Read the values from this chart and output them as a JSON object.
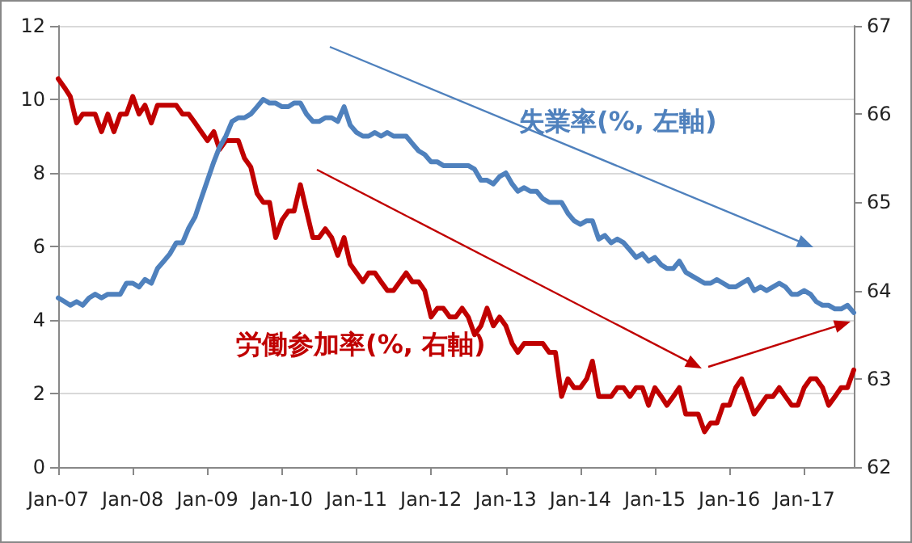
{
  "chart_data": {
    "type": "line",
    "x": [
      "2007-01",
      "2007-02",
      "2007-03",
      "2007-04",
      "2007-05",
      "2007-06",
      "2007-07",
      "2007-08",
      "2007-09",
      "2007-10",
      "2007-11",
      "2007-12",
      "2008-01",
      "2008-02",
      "2008-03",
      "2008-04",
      "2008-05",
      "2008-06",
      "2008-07",
      "2008-08",
      "2008-09",
      "2008-10",
      "2008-11",
      "2008-12",
      "2009-01",
      "2009-02",
      "2009-03",
      "2009-04",
      "2009-05",
      "2009-06",
      "2009-07",
      "2009-08",
      "2009-09",
      "2009-10",
      "2009-11",
      "2009-12",
      "2010-01",
      "2010-02",
      "2010-03",
      "2010-04",
      "2010-05",
      "2010-06",
      "2010-07",
      "2010-08",
      "2010-09",
      "2010-10",
      "2010-11",
      "2010-12",
      "2011-01",
      "2011-02",
      "2011-03",
      "2011-04",
      "2011-05",
      "2011-06",
      "2011-07",
      "2011-08",
      "2011-09",
      "2011-10",
      "2011-11",
      "2011-12",
      "2012-01",
      "2012-02",
      "2012-03",
      "2012-04",
      "2012-05",
      "2012-06",
      "2012-07",
      "2012-08",
      "2012-09",
      "2012-10",
      "2012-11",
      "2012-12",
      "2013-01",
      "2013-02",
      "2013-03",
      "2013-04",
      "2013-05",
      "2013-06",
      "2013-07",
      "2013-08",
      "2013-09",
      "2013-10",
      "2013-11",
      "2013-12",
      "2014-01",
      "2014-02",
      "2014-03",
      "2014-04",
      "2014-05",
      "2014-06",
      "2014-07",
      "2014-08",
      "2014-09",
      "2014-10",
      "2014-11",
      "2014-12",
      "2015-01",
      "2015-02",
      "2015-03",
      "2015-04",
      "2015-05",
      "2015-06",
      "2015-07",
      "2015-08",
      "2015-09",
      "2015-10",
      "2015-11",
      "2015-12",
      "2016-01",
      "2016-02",
      "2016-03",
      "2016-04",
      "2016-05",
      "2016-06",
      "2016-07",
      "2016-08",
      "2016-09",
      "2016-10",
      "2016-11",
      "2016-12",
      "2017-01",
      "2017-02",
      "2017-03",
      "2017-04",
      "2017-05",
      "2017-06",
      "2017-07",
      "2017-08",
      "2017-09"
    ],
    "series": [
      {
        "name": "失業率(%, 左軸)",
        "color": "#4f81bd",
        "values": [
          4.6,
          4.5,
          4.4,
          4.5,
          4.4,
          4.6,
          4.7,
          4.6,
          4.7,
          4.7,
          4.7,
          5.0,
          5.0,
          4.9,
          5.1,
          5.0,
          5.4,
          5.6,
          5.8,
          6.1,
          6.1,
          6.5,
          6.8,
          7.3,
          7.8,
          8.3,
          8.7,
          9.0,
          9.4,
          9.5,
          9.5,
          9.6,
          9.8,
          10.0,
          9.9,
          9.9,
          9.8,
          9.8,
          9.9,
          9.9,
          9.6,
          9.4,
          9.4,
          9.5,
          9.5,
          9.4,
          9.8,
          9.3,
          9.1,
          9.0,
          9.0,
          9.1,
          9.0,
          9.1,
          9.0,
          9.0,
          9.0,
          8.8,
          8.6,
          8.5,
          8.3,
          8.3,
          8.2,
          8.2,
          8.2,
          8.2,
          8.2,
          8.1,
          7.8,
          7.8,
          7.7,
          7.9,
          8.0,
          7.7,
          7.5,
          7.6,
          7.5,
          7.5,
          7.3,
          7.2,
          7.2,
          7.2,
          6.9,
          6.7,
          6.6,
          6.7,
          6.7,
          6.2,
          6.3,
          6.1,
          6.2,
          6.1,
          5.9,
          5.7,
          5.8,
          5.6,
          5.7,
          5.5,
          5.4,
          5.4,
          5.6,
          5.3,
          5.2,
          5.1,
          5.0,
          5.0,
          5.1,
          5.0,
          4.9,
          4.9,
          5.0,
          5.1,
          4.8,
          4.9,
          4.8,
          4.9,
          5.0,
          4.9,
          4.7,
          4.7,
          4.8,
          4.7,
          4.5,
          4.4,
          4.4,
          4.3,
          4.3,
          4.4,
          4.2
        ]
      },
      {
        "name": "労働参加率(%, 右軸)",
        "color": "#c00000",
        "axis": "y2",
        "values": [
          66.4,
          66.3,
          66.2,
          65.9,
          66.0,
          66.0,
          66.0,
          65.8,
          66.0,
          65.8,
          66.0,
          66.0,
          66.2,
          66.0,
          66.1,
          65.9,
          66.1,
          66.1,
          66.1,
          66.1,
          66.0,
          66.0,
          65.9,
          65.8,
          65.7,
          65.8,
          65.6,
          65.7,
          65.7,
          65.7,
          65.5,
          65.4,
          65.1,
          65.0,
          65.0,
          64.6,
          64.8,
          64.9,
          64.9,
          65.2,
          64.9,
          64.6,
          64.6,
          64.7,
          64.6,
          64.4,
          64.6,
          64.3,
          64.2,
          64.1,
          64.2,
          64.2,
          64.1,
          64.0,
          64.0,
          64.1,
          64.2,
          64.1,
          64.1,
          64.0,
          63.7,
          63.8,
          63.8,
          63.7,
          63.7,
          63.8,
          63.7,
          63.5,
          63.6,
          63.8,
          63.6,
          63.7,
          63.6,
          63.4,
          63.3,
          63.4,
          63.4,
          63.4,
          63.4,
          63.3,
          63.3,
          62.8,
          63.0,
          62.9,
          62.9,
          63.0,
          63.2,
          62.8,
          62.8,
          62.8,
          62.9,
          62.9,
          62.8,
          62.9,
          62.9,
          62.7,
          62.9,
          62.8,
          62.7,
          62.8,
          62.9,
          62.6,
          62.6,
          62.6,
          62.4,
          62.5,
          62.5,
          62.7,
          62.7,
          62.9,
          63.0,
          62.8,
          62.6,
          62.7,
          62.8,
          62.8,
          62.9,
          62.8,
          62.7,
          62.7,
          62.9,
          63.0,
          63.0,
          62.9,
          62.7,
          62.8,
          62.9,
          62.9,
          63.1
        ]
      }
    ],
    "xlim": [
      "2007-01",
      "2017-09"
    ],
    "xticks": [
      {
        "value": "2007-01",
        "label": "Jan-07"
      },
      {
        "value": "2008-01",
        "label": "Jan-08"
      },
      {
        "value": "2009-01",
        "label": "Jan-09"
      },
      {
        "value": "2010-01",
        "label": "Jan-10"
      },
      {
        "value": "2011-01",
        "label": "Jan-11"
      },
      {
        "value": "2012-01",
        "label": "Jan-12"
      },
      {
        "value": "2013-01",
        "label": "Jan-13"
      },
      {
        "value": "2014-01",
        "label": "Jan-14"
      },
      {
        "value": "2015-01",
        "label": "Jan-15"
      },
      {
        "value": "2016-01",
        "label": "Jan-16"
      },
      {
        "value": "2017-01",
        "label": "Jan-17"
      }
    ],
    "ylim": [
      0,
      12
    ],
    "yticks": [
      0,
      2,
      4,
      6,
      8,
      10,
      12
    ],
    "y2lim": [
      62,
      67
    ],
    "y2ticks": [
      62,
      63,
      64,
      65,
      66,
      67
    ],
    "grid": "y",
    "marker": "none",
    "line_style": "solid"
  }
}
